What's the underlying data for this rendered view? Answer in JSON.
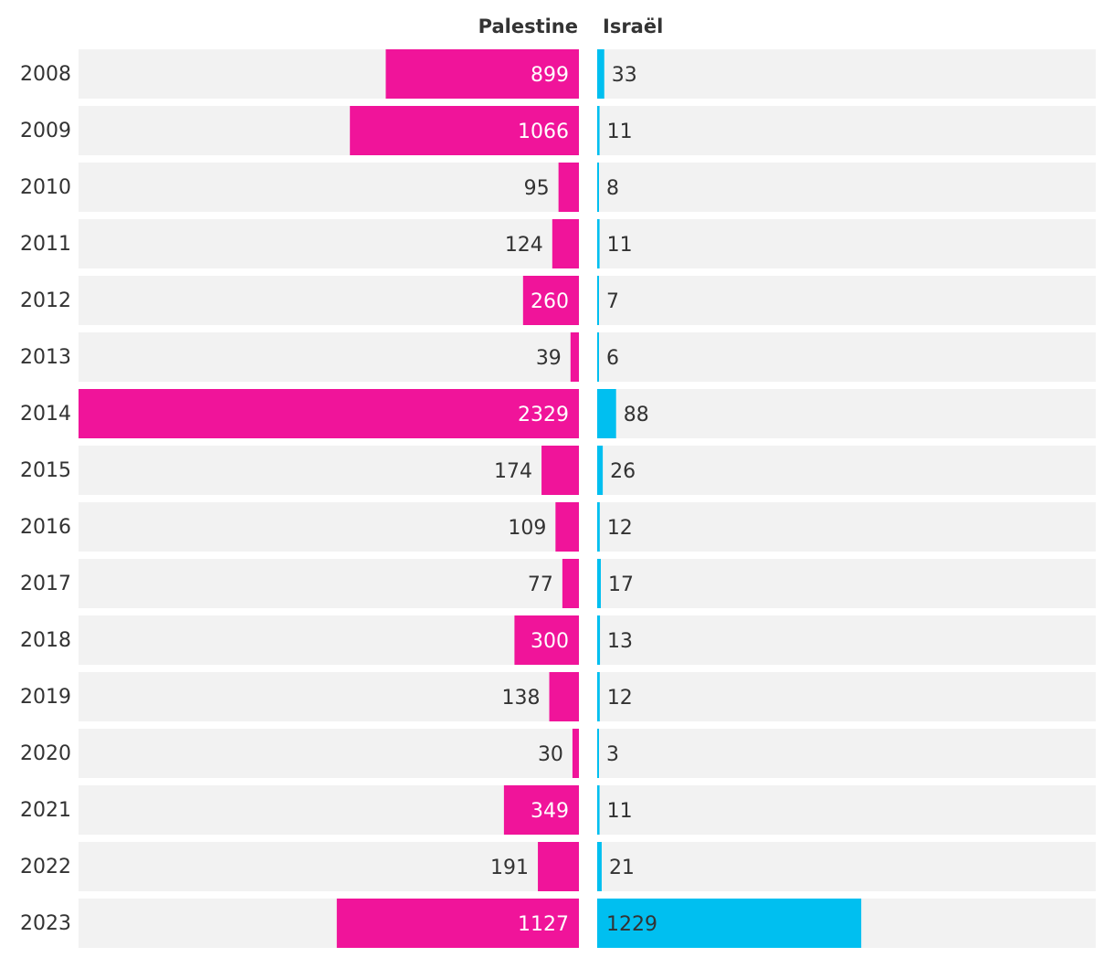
{
  "chart_data": {
    "type": "bar",
    "series": [
      {
        "name": "Palestine",
        "color": "#f0149a",
        "values": [
          899,
          1066,
          95,
          124,
          260,
          39,
          2329,
          174,
          109,
          77,
          300,
          138,
          30,
          349,
          191,
          1127
        ]
      },
      {
        "name": "Israël",
        "color": "#00bff0",
        "values": [
          33,
          11,
          8,
          11,
          7,
          6,
          88,
          26,
          12,
          17,
          13,
          12,
          3,
          11,
          21,
          1229
        ]
      }
    ],
    "categories": [
      "2008",
      "2009",
      "2010",
      "2011",
      "2012",
      "2013",
      "2014",
      "2015",
      "2016",
      "2017",
      "2018",
      "2019",
      "2020",
      "2021",
      "2022",
      "2023"
    ],
    "title": "",
    "xlabel": "",
    "ylabel": "",
    "grid": false,
    "legend": "top-center",
    "row_background_color": "#f2f2f2",
    "label_dark_color": "#333333",
    "label_light_color": "#ffffff"
  }
}
